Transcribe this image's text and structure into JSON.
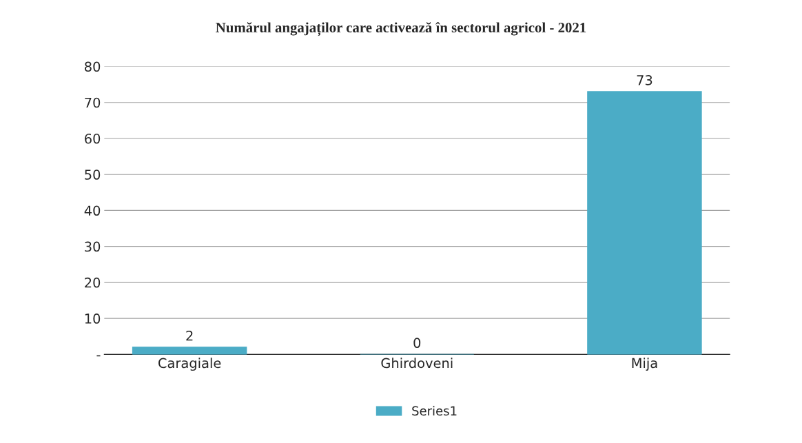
{
  "chart_data": {
    "type": "bar",
    "title": "Numărul angajaților care activează în sectorul agricol - 2021",
    "categories": [
      "Caragiale",
      "Ghirdoveni",
      "Mija"
    ],
    "series": [
      {
        "name": "Series1",
        "color": "#4bacc6",
        "values": [
          2,
          0,
          73
        ]
      }
    ],
    "ylim": [
      0,
      80
    ],
    "yticks": [
      {
        "value": 0,
        "label": "-"
      },
      10,
      20,
      30,
      40,
      50,
      60,
      70,
      80
    ],
    "grid": "y",
    "legend": "bottom",
    "data_labels": true
  }
}
